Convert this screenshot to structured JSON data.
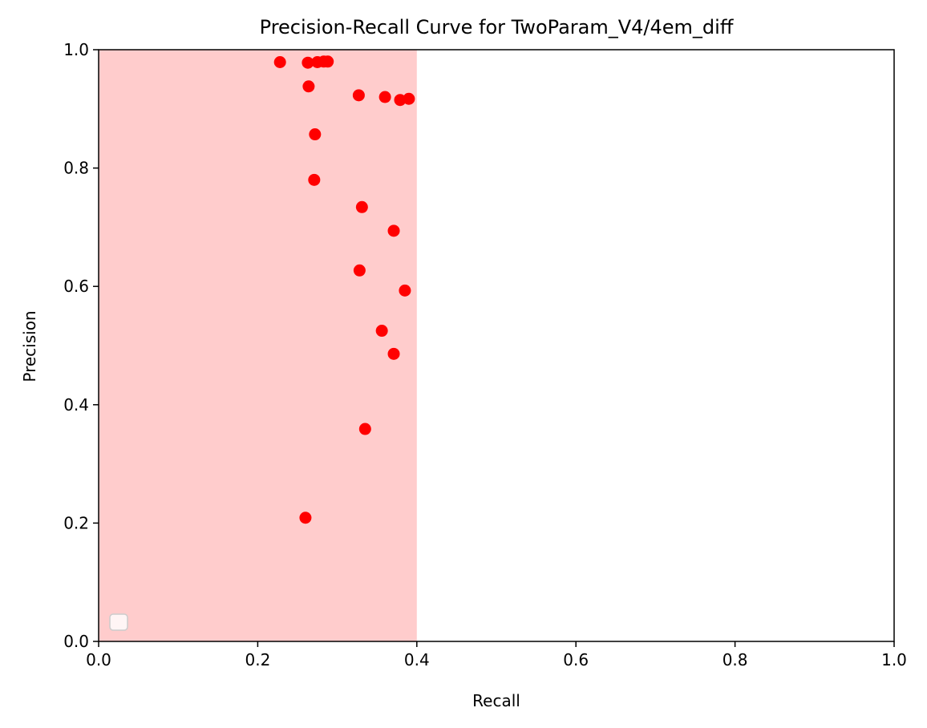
{
  "chart_data": {
    "type": "scatter",
    "title": "Precision-Recall Curve for TwoParam_V4/4em_diff",
    "xlabel": "Recall",
    "ylabel": "Precision",
    "xlim": [
      0.0,
      1.0
    ],
    "ylim": [
      0.0,
      1.0
    ],
    "xticks": [
      "0.0",
      "0.2",
      "0.4",
      "0.6",
      "0.8",
      "1.0"
    ],
    "yticks": [
      "0.0",
      "0.2",
      "0.4",
      "0.6",
      "0.8",
      "1.0"
    ],
    "grid": false,
    "legend": "lower-left",
    "shaded_region": {
      "x_from": 0.0,
      "x_to": 0.4,
      "color": "#ffcccc"
    },
    "point_color": "#ff0000",
    "points": [
      {
        "x": 0.228,
        "y": 0.979
      },
      {
        "x": 0.263,
        "y": 0.978
      },
      {
        "x": 0.275,
        "y": 0.979
      },
      {
        "x": 0.283,
        "y": 0.98
      },
      {
        "x": 0.288,
        "y": 0.98
      },
      {
        "x": 0.264,
        "y": 0.938
      },
      {
        "x": 0.327,
        "y": 0.923
      },
      {
        "x": 0.36,
        "y": 0.92
      },
      {
        "x": 0.379,
        "y": 0.915
      },
      {
        "x": 0.39,
        "y": 0.917
      },
      {
        "x": 0.272,
        "y": 0.857
      },
      {
        "x": 0.271,
        "y": 0.78
      },
      {
        "x": 0.331,
        "y": 0.734
      },
      {
        "x": 0.371,
        "y": 0.694
      },
      {
        "x": 0.328,
        "y": 0.627
      },
      {
        "x": 0.385,
        "y": 0.593
      },
      {
        "x": 0.356,
        "y": 0.525
      },
      {
        "x": 0.371,
        "y": 0.486
      },
      {
        "x": 0.335,
        "y": 0.359
      },
      {
        "x": 0.26,
        "y": 0.209
      }
    ]
  }
}
